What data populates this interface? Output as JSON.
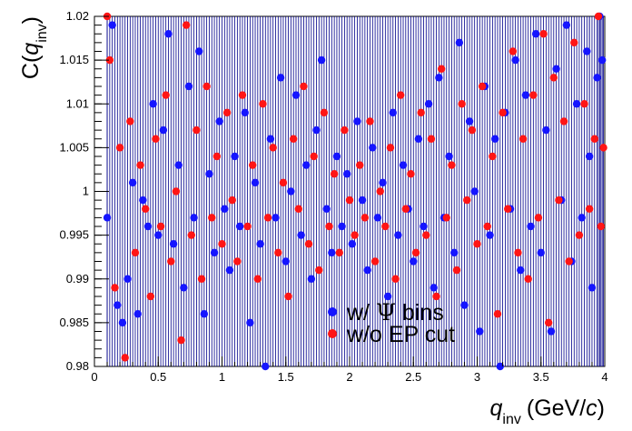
{
  "chart_data": {
    "type": "scatter",
    "xlabel_main": "q",
    "xlabel_sub": "inv",
    "xlabel_units": "(GeV/",
    "xlabel_units_c": "c",
    "xlabel_units_close": ")",
    "ylabel_main": "C(",
    "ylabel_q": "q",
    "ylabel_sub": "inv",
    "ylabel_close": ")",
    "xlim": [
      0,
      4
    ],
    "ylim": [
      0.98,
      1.02
    ],
    "x_ticks": [
      0,
      0.5,
      1,
      1.5,
      2,
      2.5,
      3,
      3.5,
      4
    ],
    "x_tick_labels": [
      "0",
      "0.5",
      "1",
      "1.5",
      "2",
      "2.5",
      "3",
      "3.5",
      "4"
    ],
    "y_ticks": [
      0.98,
      0.985,
      0.99,
      0.995,
      1,
      1.005,
      1.01,
      1.015,
      1.02
    ],
    "y_tick_labels": [
      "0.98",
      "0.985",
      "0.99",
      "0.995",
      "1",
      "1.005",
      "1.01",
      "1.015",
      "1.02"
    ],
    "legend_position": "center-bottom",
    "legend": [
      {
        "label_pre": "w/ ",
        "label_symbol": "Ψ",
        "label_post": " bins"
      },
      {
        "label_pre": "w/o EP cut",
        "label_symbol": "",
        "label_post": ""
      }
    ],
    "series": [
      {
        "color": "#1515ff",
        "errorbar_color": "#00008b",
        "points": [
          [
            0.1,
            0.997
          ],
          [
            0.14,
            1.019
          ],
          [
            0.18,
            0.987
          ],
          [
            0.22,
            0.985
          ],
          [
            0.26,
            0.99
          ],
          [
            0.3,
            1.001
          ],
          [
            0.34,
            0.986
          ],
          [
            0.38,
            0.999
          ],
          [
            0.42,
            0.996
          ],
          [
            0.46,
            1.01
          ],
          [
            0.5,
            0.995
          ],
          [
            0.54,
            1.007
          ],
          [
            0.58,
            1.018
          ],
          [
            0.62,
            0.994
          ],
          [
            0.66,
            1.003
          ],
          [
            0.7,
            0.989
          ],
          [
            0.74,
            1.012
          ],
          [
            0.78,
            0.997
          ],
          [
            0.82,
            1.016
          ],
          [
            0.86,
            0.986
          ],
          [
            0.9,
            1.002
          ],
          [
            0.94,
            0.993
          ],
          [
            0.98,
            1.008
          ],
          [
            1.02,
            0.998
          ],
          [
            1.06,
            0.991
          ],
          [
            1.1,
            1.004
          ],
          [
            1.14,
            0.996
          ],
          [
            1.18,
            1.009
          ],
          [
            1.22,
            0.985
          ],
          [
            1.26,
            1.001
          ],
          [
            1.3,
            0.994
          ],
          [
            1.34,
            0.98
          ],
          [
            1.38,
            1.006
          ],
          [
            1.42,
            0.997
          ],
          [
            1.46,
            1.013
          ],
          [
            1.5,
            0.992
          ],
          [
            1.54,
            1.0
          ],
          [
            1.58,
            1.011
          ],
          [
            1.62,
            0.995
          ],
          [
            1.66,
            1.003
          ],
          [
            1.7,
            0.99
          ],
          [
            1.74,
            1.007
          ],
          [
            1.78,
            1.015
          ],
          [
            1.82,
            0.998
          ],
          [
            1.86,
            0.993
          ],
          [
            1.9,
            1.004
          ],
          [
            1.94,
            0.996
          ],
          [
            1.98,
            1.002
          ],
          [
            2.02,
            0.994
          ],
          [
            2.06,
            1.008
          ],
          [
            2.1,
            0.999
          ],
          [
            2.14,
            0.991
          ],
          [
            2.18,
            1.005
          ],
          [
            2.22,
            0.997
          ],
          [
            2.26,
            1.001
          ],
          [
            2.3,
            0.988
          ],
          [
            2.34,
            1.009
          ],
          [
            2.38,
            0.995
          ],
          [
            2.42,
            1.003
          ],
          [
            2.46,
            0.998
          ],
          [
            2.5,
            0.992
          ],
          [
            2.54,
            1.006
          ],
          [
            2.58,
            0.996
          ],
          [
            2.62,
            1.01
          ],
          [
            2.66,
            0.989
          ],
          [
            2.7,
            1.013
          ],
          [
            2.74,
            0.997
          ],
          [
            2.78,
            1.004
          ],
          [
            2.82,
            0.993
          ],
          [
            2.86,
            1.017
          ],
          [
            2.9,
            0.987
          ],
          [
            2.94,
            1.008
          ],
          [
            2.98,
            1.0
          ],
          [
            3.02,
            0.984
          ],
          [
            3.06,
            1.012
          ],
          [
            3.1,
            0.995
          ],
          [
            3.14,
            1.006
          ],
          [
            3.18,
            0.98
          ],
          [
            3.22,
            1.009
          ],
          [
            3.26,
            0.998
          ],
          [
            3.3,
            1.015
          ],
          [
            3.34,
            0.991
          ],
          [
            3.38,
            1.011
          ],
          [
            3.42,
            0.996
          ],
          [
            3.46,
            1.018
          ],
          [
            3.5,
            0.993
          ],
          [
            3.54,
            1.007
          ],
          [
            3.58,
            0.984
          ],
          [
            3.62,
            1.014
          ],
          [
            3.66,
            0.999
          ],
          [
            3.7,
            1.019
          ],
          [
            3.74,
            0.992
          ],
          [
            3.78,
            1.01
          ],
          [
            3.82,
            0.997
          ],
          [
            3.86,
            1.016
          ],
          [
            3.9,
            0.989
          ],
          [
            3.94,
            1.013
          ],
          [
            3.98,
            1.015
          ],
          [
            3.96,
            1.02
          ],
          [
            3.88,
            1.004
          ]
        ]
      },
      {
        "color": "#ff1515",
        "errorbar_color": "#00008b",
        "points": [
          [
            0.1,
            1.02
          ],
          [
            0.12,
            1.015
          ],
          [
            0.16,
            0.989
          ],
          [
            0.2,
            1.005
          ],
          [
            0.24,
            0.981
          ],
          [
            0.28,
            1.008
          ],
          [
            0.32,
            0.993
          ],
          [
            0.36,
            1.003
          ],
          [
            0.4,
            0.998
          ],
          [
            0.44,
            0.988
          ],
          [
            0.48,
            1.006
          ],
          [
            0.52,
            0.996
          ],
          [
            0.56,
            1.011
          ],
          [
            0.6,
            0.992
          ],
          [
            0.64,
            1.0
          ],
          [
            0.68,
            0.983
          ],
          [
            0.72,
            1.019
          ],
          [
            0.76,
            0.995
          ],
          [
            0.8,
            1.007
          ],
          [
            0.84,
            0.99
          ],
          [
            0.88,
            1.012
          ],
          [
            0.92,
            0.997
          ],
          [
            0.96,
            1.004
          ],
          [
            1.0,
            0.994
          ],
          [
            1.04,
            1.009
          ],
          [
            1.08,
            0.999
          ],
          [
            1.12,
            0.992
          ],
          [
            1.16,
            1.011
          ],
          [
            1.2,
            0.996
          ],
          [
            1.24,
            1.003
          ],
          [
            1.28,
            0.99
          ],
          [
            1.32,
            1.01
          ],
          [
            1.36,
            0.997
          ],
          [
            1.4,
            1.005
          ],
          [
            1.44,
            0.993
          ],
          [
            1.48,
            1.001
          ],
          [
            1.52,
            0.988
          ],
          [
            1.56,
            1.006
          ],
          [
            1.6,
            0.998
          ],
          [
            1.64,
            1.012
          ],
          [
            1.68,
            0.994
          ],
          [
            1.72,
            1.004
          ],
          [
            1.76,
            0.991
          ],
          [
            1.8,
            1.009
          ],
          [
            1.84,
            0.996
          ],
          [
            1.88,
            1.002
          ],
          [
            1.92,
            0.993
          ],
          [
            1.96,
            1.007
          ],
          [
            2.0,
            0.999
          ],
          [
            2.04,
            0.995
          ],
          [
            2.08,
            1.003
          ],
          [
            2.12,
            0.997
          ],
          [
            2.16,
            1.008
          ],
          [
            2.2,
            0.992
          ],
          [
            2.24,
            1.0
          ],
          [
            2.28,
            0.996
          ],
          [
            2.32,
            1.005
          ],
          [
            2.36,
            0.99
          ],
          [
            2.4,
            1.011
          ],
          [
            2.44,
            0.998
          ],
          [
            2.48,
            1.002
          ],
          [
            2.52,
            0.993
          ],
          [
            2.56,
            1.009
          ],
          [
            2.6,
            0.995
          ],
          [
            2.64,
            1.006
          ],
          [
            2.68,
            0.988
          ],
          [
            2.72,
            1.014
          ],
          [
            2.76,
            0.997
          ],
          [
            2.8,
            1.003
          ],
          [
            2.84,
            0.991
          ],
          [
            2.88,
            1.01
          ],
          [
            2.92,
            0.999
          ],
          [
            2.96,
            1.007
          ],
          [
            3.0,
            0.994
          ],
          [
            3.04,
            1.012
          ],
          [
            3.08,
            0.996
          ],
          [
            3.12,
            1.004
          ],
          [
            3.16,
            0.986
          ],
          [
            3.2,
            1.009
          ],
          [
            3.24,
            0.998
          ],
          [
            3.28,
            1.016
          ],
          [
            3.32,
            0.993
          ],
          [
            3.36,
            1.006
          ],
          [
            3.4,
            0.99
          ],
          [
            3.44,
            1.011
          ],
          [
            3.48,
            0.997
          ],
          [
            3.52,
            1.018
          ],
          [
            3.56,
            0.985
          ],
          [
            3.6,
            1.013
          ],
          [
            3.64,
            0.999
          ],
          [
            3.68,
            1.008
          ],
          [
            3.72,
            0.992
          ],
          [
            3.76,
            1.017
          ],
          [
            3.8,
            0.995
          ],
          [
            3.84,
            1.01
          ],
          [
            3.88,
            0.998
          ],
          [
            3.92,
            1.006
          ],
          [
            3.95,
            1.02
          ],
          [
            3.97,
            0.996
          ],
          [
            3.99,
            1.005
          ]
        ]
      }
    ]
  }
}
